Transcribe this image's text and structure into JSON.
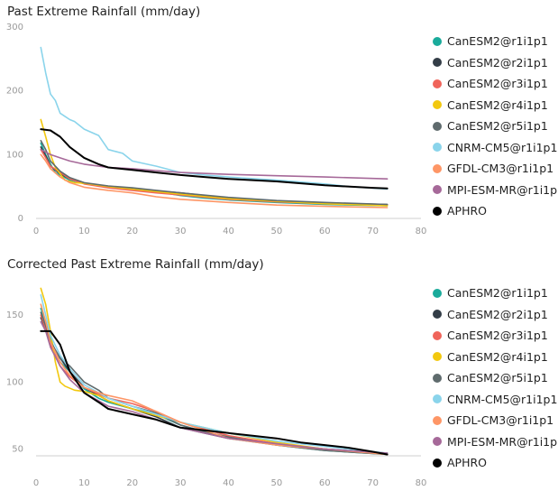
{
  "chart_data": [
    {
      "type": "line",
      "title": "Past Extreme Rainfall (mm/day)",
      "xlabel": "",
      "ylabel": "",
      "xlim": [
        0,
        80
      ],
      "ylim": [
        0,
        300
      ],
      "xticks": [
        0,
        10,
        20,
        30,
        40,
        50,
        60,
        70,
        80
      ],
      "yticks": [
        0,
        100,
        200,
        300
      ],
      "grid": false,
      "legend_position": "right",
      "series": [
        {
          "name": "CanESM2@r1i1p1",
          "color": "#1aab9b",
          "x": [
            1,
            2,
            3,
            4,
            5,
            7,
            10,
            13,
            16,
            20,
            25,
            30,
            35,
            40,
            50,
            60,
            73
          ],
          "y": [
            118,
            100,
            85,
            72,
            68,
            60,
            55,
            52,
            48,
            45,
            42,
            36,
            32,
            29,
            25,
            22,
            20
          ]
        },
        {
          "name": "CanESM2@r2i1p1",
          "color": "#333d47",
          "x": [
            1,
            2,
            3,
            5,
            7,
            10,
            15,
            20,
            25,
            30,
            40,
            50,
            60,
            73
          ],
          "y": [
            112,
            98,
            82,
            70,
            62,
            55,
            50,
            47,
            43,
            40,
            32,
            27,
            24,
            22
          ]
        },
        {
          "name": "CanESM2@r3i1p1",
          "color": "#f0645a",
          "x": [
            1,
            2,
            3,
            5,
            7,
            10,
            15,
            20,
            25,
            30,
            40,
            50,
            60,
            73
          ],
          "y": [
            108,
            95,
            82,
            72,
            62,
            54,
            48,
            44,
            40,
            37,
            30,
            26,
            23,
            21
          ]
        },
        {
          "name": "CanESM2@r4i1p1",
          "color": "#f2c80f",
          "x": [
            1,
            2,
            3,
            4,
            5,
            6,
            8,
            10,
            15,
            20,
            30,
            40,
            50,
            60,
            73
          ],
          "y": [
            155,
            128,
            100,
            80,
            70,
            60,
            56,
            55,
            50,
            46,
            38,
            31,
            27,
            23,
            20
          ]
        },
        {
          "name": "CanESM2@r5i1p1",
          "color": "#5f6b6d",
          "x": [
            1,
            2,
            3,
            5,
            7,
            10,
            15,
            20,
            25,
            30,
            40,
            50,
            60,
            73
          ],
          "y": [
            122,
            108,
            90,
            74,
            64,
            56,
            51,
            48,
            44,
            40,
            33,
            28,
            25,
            22
          ]
        },
        {
          "name": "CNRM-CM5@r1i1p1",
          "color": "#8ad4eb",
          "x": [
            1,
            2,
            3,
            4,
            5,
            6,
            7,
            8,
            10,
            13,
            15,
            18,
            20,
            25,
            30,
            35,
            40,
            50,
            60,
            65,
            73
          ],
          "y": [
            268,
            228,
            195,
            185,
            165,
            160,
            155,
            152,
            140,
            130,
            108,
            102,
            90,
            82,
            72,
            68,
            65,
            60,
            54,
            50,
            46
          ]
        },
        {
          "name": "GFDL-CM3@r1i1p1",
          "color": "#fe9666",
          "x": [
            1,
            2,
            3,
            5,
            7,
            10,
            15,
            20,
            25,
            30,
            40,
            50,
            60,
            73
          ],
          "y": [
            100,
            90,
            78,
            65,
            56,
            49,
            44,
            40,
            34,
            30,
            25,
            21,
            19,
            17
          ]
        },
        {
          "name": "MPI-ESM-MR@r1i1p1",
          "color": "#a66999",
          "x": [
            1,
            2,
            3,
            5,
            7,
            10,
            15,
            20,
            25,
            30,
            40,
            50,
            60,
            73
          ],
          "y": [
            108,
            104,
            100,
            95,
            90,
            85,
            80,
            78,
            75,
            72,
            69,
            67,
            65,
            62
          ]
        },
        {
          "name": "APHRO",
          "color": "#000000",
          "x": [
            1,
            3,
            5,
            7,
            10,
            13,
            15,
            20,
            25,
            30,
            35,
            40,
            50,
            60,
            70,
            73
          ],
          "y": [
            140,
            138,
            128,
            112,
            95,
            85,
            80,
            76,
            72,
            68,
            65,
            62,
            58,
            52,
            48,
            47
          ]
        }
      ]
    },
    {
      "type": "line",
      "title": "Corrected Past Extreme Rainfall (mm/day)",
      "xlabel": "",
      "ylabel": "",
      "xlim": [
        0,
        80
      ],
      "ylim": [
        45,
        175
      ],
      "xticks": [
        0,
        10,
        20,
        30,
        40,
        50,
        60,
        70,
        80
      ],
      "yticks": [
        50,
        100,
        150
      ],
      "grid": false,
      "legend_position": "right",
      "series": [
        {
          "name": "CanESM2@r1i1p1",
          "color": "#1aab9b",
          "x": [
            1,
            2,
            3,
            5,
            7,
            10,
            13,
            15,
            20,
            25,
            30,
            35,
            40,
            50,
            60,
            73
          ],
          "y": [
            155,
            145,
            132,
            115,
            108,
            95,
            88,
            85,
            80,
            76,
            68,
            63,
            58,
            53,
            49,
            46
          ]
        },
        {
          "name": "CanESM2@r2i1p1",
          "color": "#333d47",
          "x": [
            1,
            2,
            3,
            5,
            7,
            10,
            13,
            15,
            20,
            25,
            30,
            35,
            40,
            50,
            60,
            73
          ],
          "y": [
            148,
            140,
            130,
            118,
            108,
            96,
            90,
            86,
            80,
            74,
            66,
            62,
            58,
            54,
            50,
            47
          ]
        },
        {
          "name": "CanESM2@r3i1p1",
          "color": "#f0645a",
          "x": [
            1,
            2,
            3,
            5,
            7,
            10,
            13,
            15,
            20,
            25,
            30,
            35,
            40,
            50,
            60,
            73
          ],
          "y": [
            150,
            140,
            128,
            112,
            104,
            96,
            91,
            88,
            84,
            78,
            70,
            65,
            60,
            54,
            50,
            46
          ]
        },
        {
          "name": "CanESM2@r4i1p1",
          "color": "#f2c80f",
          "x": [
            1,
            2,
            3,
            4,
            5,
            6,
            8,
            10,
            13,
            15,
            20,
            25,
            30,
            40,
            50,
            60,
            73
          ],
          "y": [
            170,
            158,
            138,
            115,
            100,
            97,
            94,
            93,
            90,
            86,
            80,
            75,
            70,
            62,
            55,
            50,
            46
          ]
        },
        {
          "name": "CanESM2@r5i1p1",
          "color": "#5f6b6d",
          "x": [
            1,
            2,
            3,
            5,
            7,
            10,
            13,
            15,
            20,
            25,
            30,
            35,
            40,
            50,
            60,
            73
          ],
          "y": [
            152,
            142,
            130,
            118,
            112,
            100,
            94,
            88,
            82,
            77,
            68,
            63,
            59,
            53,
            49,
            46
          ]
        },
        {
          "name": "CNRM-CM5@r1i1p1",
          "color": "#8ad4eb",
          "x": [
            1,
            2,
            3,
            5,
            7,
            10,
            13,
            15,
            20,
            25,
            30,
            35,
            40,
            50,
            60,
            73
          ],
          "y": [
            165,
            150,
            135,
            120,
            110,
            98,
            92,
            88,
            82,
            76,
            70,
            66,
            62,
            56,
            52,
            47
          ]
        },
        {
          "name": "GFDL-CM3@r1i1p1",
          "color": "#fe9666",
          "x": [
            1,
            2,
            3,
            5,
            7,
            10,
            13,
            15,
            20,
            25,
            30,
            35,
            40,
            50,
            60,
            73
          ],
          "y": [
            158,
            145,
            130,
            115,
            105,
            96,
            92,
            90,
            86,
            78,
            70,
            64,
            58,
            53,
            50,
            46
          ]
        },
        {
          "name": "MPI-ESM-MR@r1i1p1",
          "color": "#a66999",
          "x": [
            1,
            2,
            3,
            5,
            7,
            10,
            13,
            15,
            20,
            25,
            30,
            35,
            40,
            50,
            60,
            73
          ],
          "y": [
            145,
            138,
            126,
            112,
            102,
            92,
            86,
            82,
            78,
            72,
            66,
            62,
            58,
            54,
            50,
            47
          ]
        },
        {
          "name": "APHRO",
          "color": "#000000",
          "x": [
            1,
            3,
            5,
            7,
            10,
            13,
            15,
            20,
            25,
            30,
            35,
            40,
            45,
            50,
            55,
            60,
            65,
            70,
            73
          ],
          "y": [
            138,
            138,
            128,
            108,
            92,
            85,
            80,
            76,
            72,
            66,
            64,
            62,
            60,
            58,
            55,
            53,
            51,
            48,
            46
          ]
        }
      ]
    }
  ]
}
